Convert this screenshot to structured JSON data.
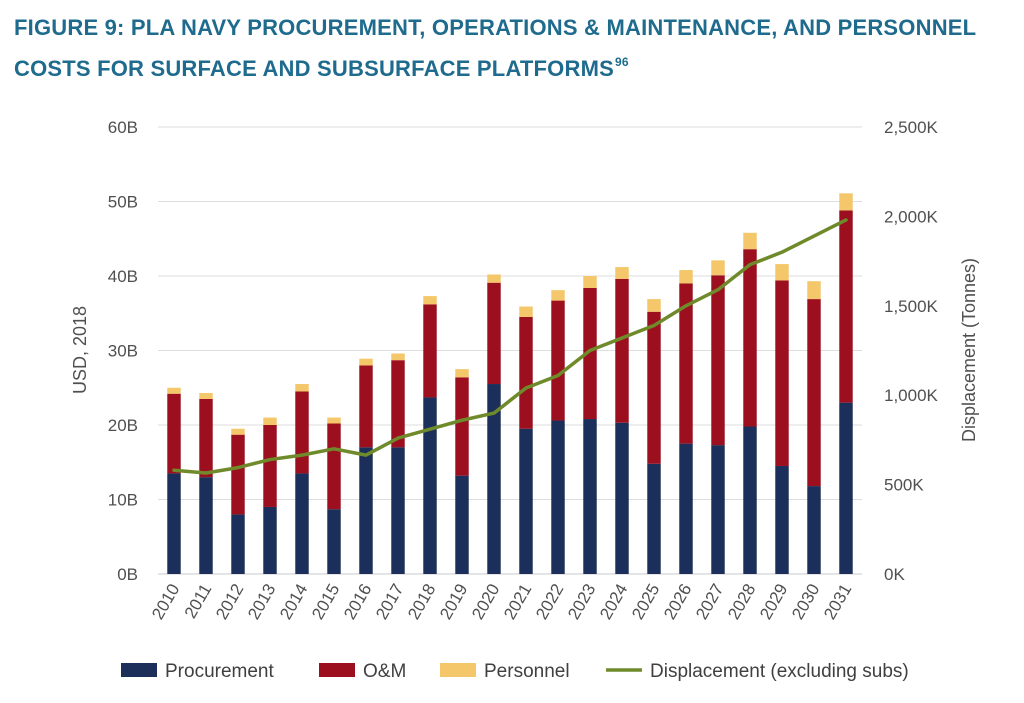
{
  "figure": {
    "title": "FIGURE 9: PLA NAVY PROCUREMENT, OPERATIONS & MAINTENANCE, AND PERSONNEL COSTS FOR SURFACE AND SUBSURFACE PLATFORMS",
    "footnote": "96"
  },
  "chart_data": {
    "type": "bar",
    "stacked": true,
    "categories": [
      "2010",
      "2011",
      "2012",
      "2013",
      "2014",
      "2015",
      "2016",
      "2017",
      "2018",
      "2019",
      "2020",
      "2021",
      "2022",
      "2023",
      "2024",
      "2025",
      "2026",
      "2027",
      "2028",
      "2029",
      "2030",
      "2031"
    ],
    "series": [
      {
        "name": "Procurement",
        "color": "#1b2f5a",
        "axis": "left",
        "values": [
          13.5,
          13.0,
          8.0,
          9.0,
          13.5,
          8.7,
          17.0,
          17.0,
          23.7,
          13.2,
          25.5,
          19.5,
          20.6,
          20.8,
          20.3,
          14.8,
          17.5,
          17.3,
          19.8,
          14.5,
          11.8,
          23.0
        ]
      },
      {
        "name": "O&M",
        "color": "#9b0f1e",
        "axis": "left",
        "values": [
          10.7,
          10.5,
          10.7,
          11.0,
          11.0,
          11.5,
          11.0,
          11.7,
          12.5,
          13.2,
          13.6,
          15.0,
          16.1,
          17.6,
          19.3,
          20.4,
          21.5,
          22.8,
          23.8,
          24.9,
          25.1,
          25.8
        ]
      },
      {
        "name": "Personnel",
        "color": "#f3c76a",
        "axis": "left",
        "values": [
          0.8,
          0.8,
          0.8,
          1.0,
          1.0,
          0.8,
          0.9,
          0.9,
          1.1,
          1.1,
          1.1,
          1.4,
          1.4,
          1.6,
          1.6,
          1.7,
          1.8,
          2.0,
          2.2,
          2.2,
          2.4,
          2.3
        ]
      },
      {
        "name": "Displacement (excluding subs)",
        "type": "line",
        "color": "#6f8a2a",
        "axis": "right",
        "values": [
          580,
          565,
          595,
          640,
          665,
          700,
          665,
          760,
          810,
          860,
          900,
          1040,
          1110,
          1250,
          1320,
          1390,
          1500,
          1590,
          1730,
          1800,
          1890,
          1980
        ]
      }
    ],
    "ylabel": "USD, 2018",
    "y2label": "Displacement (Tonnes)",
    "ylim": [
      0,
      60
    ],
    "y2lim": [
      0,
      2500
    ],
    "yticks": [
      "0B",
      "10B",
      "20B",
      "30B",
      "40B",
      "50B",
      "60B"
    ],
    "y2ticks": [
      "0K",
      "500K",
      "1,000K",
      "1,500K",
      "2,000K",
      "2,500K"
    ],
    "grid": true,
    "legend_position": "bottom"
  }
}
